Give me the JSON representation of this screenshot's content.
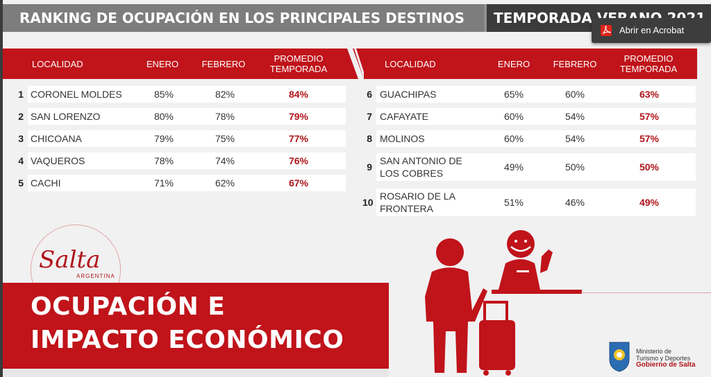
{
  "banner": {
    "title_left": "RANKING DE OCUPACIÓN EN LOS PRINCIPALES DESTINOS",
    "title_right": "TEMPORADA VERANO 2021"
  },
  "popup": {
    "label": "Abrir en Acrobat",
    "icon": "pdf-icon"
  },
  "headers": {
    "localidad": "LOCALIDAD",
    "enero": "ENERO",
    "febrero": "FEBRERO",
    "promedio": "PROMEDIO TEMPORADA"
  },
  "ranking_left": [
    {
      "n": "1",
      "name": "CORONEL MOLDES",
      "enero": "85%",
      "febrero": "82%",
      "promedio": "84%"
    },
    {
      "n": "2",
      "name": "SAN LORENZO",
      "enero": "80%",
      "febrero": "78%",
      "promedio": "79%"
    },
    {
      "n": "3",
      "name": "CHICOANA",
      "enero": "79%",
      "febrero": "75%",
      "promedio": "77%"
    },
    {
      "n": "4",
      "name": "VAQUEROS",
      "enero": "78%",
      "febrero": "74%",
      "promedio": "76%"
    },
    {
      "n": "5",
      "name": "CACHI",
      "enero": "71%",
      "febrero": "62%",
      "promedio": "67%"
    }
  ],
  "ranking_right": [
    {
      "n": "6",
      "name": "GUACHIPAS",
      "enero": "65%",
      "febrero": "60%",
      "promedio": "63%"
    },
    {
      "n": "7",
      "name": "CAFAYATE",
      "enero": "60%",
      "febrero": "54%",
      "promedio": "57%"
    },
    {
      "n": "8",
      "name": "MOLINOS",
      "enero": "60%",
      "febrero": "54%",
      "promedio": "57%"
    },
    {
      "n": "9",
      "name": "SAN ANTONIO DE LOS COBRES",
      "enero": "49%",
      "febrero": "50%",
      "promedio": "50%"
    },
    {
      "n": "10",
      "name": "ROSARIO DE LA FRONTERA",
      "enero": "51%",
      "febrero": "46%",
      "promedio": "49%"
    }
  ],
  "logo": {
    "text": "Salta",
    "sub": "ARGENTINA"
  },
  "title": {
    "line1": "OCUPACIÓN E",
    "line2": "IMPACTO ECONÓMICO"
  },
  "ministry": {
    "line1": "Ministerio de",
    "line2": "Turismo y Deportes",
    "line3": "Gobierno de Salta"
  },
  "colors": {
    "accent": "#c0131a",
    "promedio": "#b0141a",
    "banner_left": "#7d7d7d",
    "banner_right": "#3b3b3b"
  }
}
